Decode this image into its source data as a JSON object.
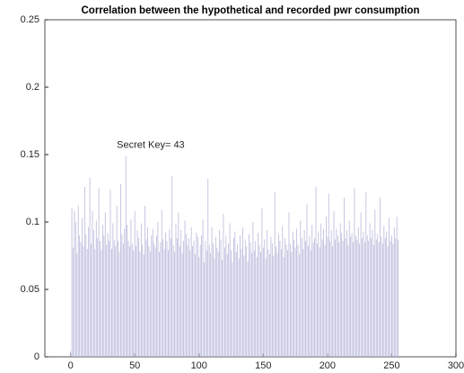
{
  "chart_data": {
    "type": "bar",
    "title": "Correlation between the hypothetical and recorded pwr consumption",
    "annotation": "Secret Key= 43",
    "annotation_x": 43,
    "color": "#b8b8dc",
    "xlim": [
      -20,
      300
    ],
    "xticks": [
      0,
      50,
      100,
      150,
      200,
      250,
      300
    ],
    "ylim": [
      0,
      0.25
    ],
    "yticks": [
      0,
      0.05,
      0.1,
      0.15,
      0.2,
      0.25
    ],
    "values": [
      0.004,
      0.11,
      0.081,
      0.108,
      0.1,
      0.077,
      0.112,
      0.09,
      0.085,
      0.103,
      0.082,
      0.126,
      0.091,
      0.08,
      0.096,
      0.133,
      0.084,
      0.108,
      0.094,
      0.08,
      0.101,
      0.088,
      0.125,
      0.086,
      0.079,
      0.098,
      0.09,
      0.107,
      0.083,
      0.092,
      0.086,
      0.124,
      0.08,
      0.099,
      0.087,
      0.082,
      0.112,
      0.086,
      0.078,
      0.128,
      0.091,
      0.084,
      0.095,
      0.149,
      0.098,
      0.086,
      0.082,
      0.102,
      0.084,
      0.079,
      0.108,
      0.082,
      0.094,
      0.088,
      0.078,
      0.099,
      0.083,
      0.076,
      0.112,
      0.087,
      0.096,
      0.082,
      0.078,
      0.09,
      0.095,
      0.084,
      0.081,
      0.09,
      0.1,
      0.078,
      0.085,
      0.109,
      0.087,
      0.08,
      0.092,
      0.086,
      0.079,
      0.095,
      0.088,
      0.134,
      0.083,
      0.078,
      0.099,
      0.088,
      0.107,
      0.082,
      0.094,
      0.077,
      0.086,
      0.101,
      0.091,
      0.083,
      0.088,
      0.079,
      0.096,
      0.082,
      0.086,
      0.076,
      0.092,
      0.089,
      0.074,
      0.083,
      0.09,
      0.102,
      0.07,
      0.086,
      0.079,
      0.132,
      0.083,
      0.077,
      0.096,
      0.084,
      0.073,
      0.089,
      0.081,
      0.078,
      0.094,
      0.087,
      0.072,
      0.106,
      0.081,
      0.09,
      0.076,
      0.084,
      0.099,
      0.079,
      0.07,
      0.088,
      0.093,
      0.078,
      0.084,
      0.073,
      0.09,
      0.08,
      0.096,
      0.075,
      0.087,
      0.082,
      0.071,
      0.091,
      0.085,
      0.077,
      0.1,
      0.079,
      0.086,
      0.074,
      0.092,
      0.083,
      0.078,
      0.11,
      0.081,
      0.087,
      0.073,
      0.094,
      0.08,
      0.076,
      0.089,
      0.084,
      0.075,
      0.122,
      0.082,
      0.077,
      0.091,
      0.086,
      0.08,
      0.097,
      0.074,
      0.088,
      0.083,
      0.079,
      0.107,
      0.084,
      0.078,
      0.093,
      0.087,
      0.081,
      0.095,
      0.083,
      0.076,
      0.101,
      0.088,
      0.08,
      0.094,
      0.086,
      0.113,
      0.082,
      0.09,
      0.079,
      0.098,
      0.085,
      0.088,
      0.126,
      0.084,
      0.093,
      0.081,
      0.099,
      0.087,
      0.095,
      0.083,
      0.104,
      0.089,
      0.121,
      0.086,
      0.094,
      0.082,
      0.108,
      0.087,
      0.095,
      0.09,
      0.085,
      0.099,
      0.092,
      0.086,
      0.118,
      0.088,
      0.094,
      0.083,
      0.101,
      0.089,
      0.092,
      0.085,
      0.125,
      0.09,
      0.087,
      0.096,
      0.084,
      0.107,
      0.088,
      0.093,
      0.085,
      0.122,
      0.09,
      0.086,
      0.099,
      0.088,
      0.094,
      0.083,
      0.109,
      0.087,
      0.091,
      0.085,
      0.118,
      0.089,
      0.084,
      0.097,
      0.088,
      0.093,
      0.082,
      0.103,
      0.086,
      0.09,
      0.084,
      0.096,
      0.088,
      0.104,
      0.087
    ]
  }
}
